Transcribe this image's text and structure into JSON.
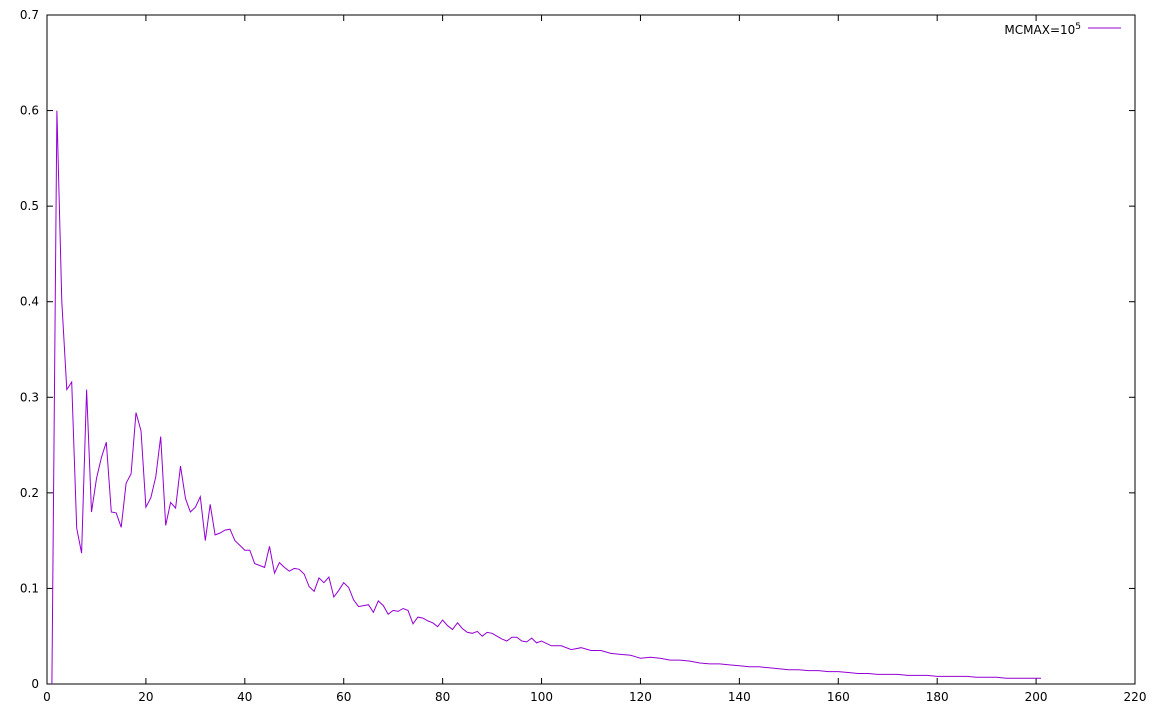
{
  "chart_data": {
    "type": "line",
    "title": "",
    "xlabel": "",
    "ylabel": "",
    "xlim": [
      0,
      220
    ],
    "ylim": [
      0,
      0.7
    ],
    "xticks": [
      0,
      20,
      40,
      60,
      80,
      100,
      120,
      140,
      160,
      180,
      200,
      220
    ],
    "yticks": [
      0,
      0.1,
      0.2,
      0.3,
      0.4,
      0.5,
      0.6,
      0.7
    ],
    "xtick_labels": [
      "0",
      "20",
      "40",
      "60",
      "80",
      "100",
      "120",
      "140",
      "160",
      "180",
      "200",
      "220"
    ],
    "ytick_labels": [
      "0",
      "0.1",
      "0.2",
      "0.3",
      "0.4",
      "0.5",
      "0.6",
      "0.7"
    ],
    "grid": false,
    "legend_position": "top-right",
    "legend_label_base": "MCMAX=10",
    "legend_label_exp": "5",
    "series": [
      {
        "name": "MCMAX=10^5",
        "color": "#9400d3",
        "x": [
          1,
          2,
          3,
          4,
          5,
          6,
          7,
          8,
          9,
          10,
          11,
          12,
          13,
          14,
          15,
          16,
          17,
          18,
          19,
          20,
          21,
          22,
          23,
          24,
          25,
          26,
          27,
          28,
          29,
          30,
          31,
          32,
          33,
          34,
          35,
          36,
          37,
          38,
          39,
          40,
          41,
          42,
          43,
          44,
          45,
          46,
          47,
          48,
          49,
          50,
          51,
          52,
          53,
          54,
          55,
          56,
          57,
          58,
          59,
          60,
          61,
          62,
          63,
          64,
          65,
          66,
          67,
          68,
          69,
          70,
          71,
          72,
          73,
          74,
          75,
          76,
          77,
          78,
          79,
          80,
          81,
          82,
          83,
          84,
          85,
          86,
          87,
          88,
          89,
          90,
          91,
          92,
          93,
          94,
          95,
          96,
          97,
          98,
          99,
          100,
          102,
          104,
          106,
          108,
          110,
          112,
          114,
          116,
          118,
          120,
          122,
          124,
          126,
          128,
          130,
          132,
          134,
          136,
          138,
          140,
          142,
          144,
          146,
          148,
          150,
          152,
          154,
          156,
          158,
          160,
          162,
          164,
          166,
          168,
          170,
          172,
          174,
          176,
          178,
          180,
          182,
          184,
          186,
          188,
          190,
          192,
          194,
          196,
          198,
          200,
          201
        ],
        "values": [
          0.0,
          0.6,
          0.4,
          0.308,
          0.316,
          0.163,
          0.137,
          0.308,
          0.18,
          0.215,
          0.237,
          0.253,
          0.18,
          0.179,
          0.164,
          0.21,
          0.22,
          0.284,
          0.265,
          0.185,
          0.195,
          0.217,
          0.259,
          0.166,
          0.19,
          0.184,
          0.228,
          0.194,
          0.18,
          0.185,
          0.196,
          0.15,
          0.188,
          0.156,
          0.158,
          0.161,
          0.162,
          0.15,
          0.145,
          0.14,
          0.14,
          0.126,
          0.124,
          0.122,
          0.144,
          0.116,
          0.127,
          0.122,
          0.118,
          0.121,
          0.12,
          0.115,
          0.102,
          0.097,
          0.111,
          0.106,
          0.112,
          0.091,
          0.098,
          0.106,
          0.101,
          0.088,
          0.081,
          0.082,
          0.083,
          0.075,
          0.087,
          0.082,
          0.073,
          0.077,
          0.076,
          0.079,
          0.077,
          0.063,
          0.07,
          0.069,
          0.066,
          0.064,
          0.06,
          0.067,
          0.061,
          0.057,
          0.064,
          0.058,
          0.054,
          0.053,
          0.055,
          0.05,
          0.054,
          0.053,
          0.05,
          0.047,
          0.045,
          0.049,
          0.049,
          0.045,
          0.044,
          0.048,
          0.043,
          0.045,
          0.04,
          0.04,
          0.036,
          0.038,
          0.035,
          0.035,
          0.032,
          0.031,
          0.03,
          0.027,
          0.028,
          0.027,
          0.025,
          0.025,
          0.024,
          0.022,
          0.021,
          0.021,
          0.02,
          0.019,
          0.018,
          0.018,
          0.017,
          0.016,
          0.015,
          0.015,
          0.014,
          0.014,
          0.013,
          0.013,
          0.012,
          0.011,
          0.011,
          0.01,
          0.01,
          0.01,
          0.009,
          0.009,
          0.009,
          0.008,
          0.008,
          0.008,
          0.008,
          0.007,
          0.007,
          0.007,
          0.006,
          0.006,
          0.006,
          0.006,
          0.006
        ]
      }
    ]
  }
}
